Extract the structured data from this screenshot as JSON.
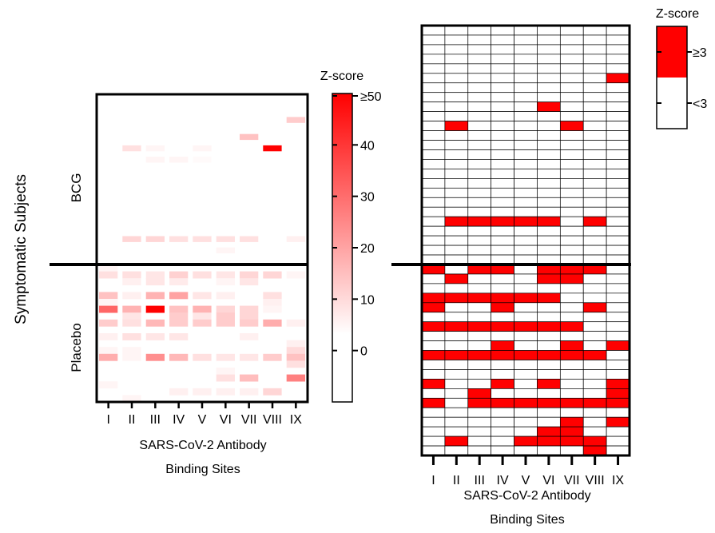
{
  "figure": {
    "y_axis_title": "Symptomatic Subjects",
    "group_top": "BCG",
    "group_bottom": "Placebo"
  },
  "chart_data": [
    {
      "type": "heatmap",
      "panel": "left",
      "xlabel": "SARS-CoV-2 Antibody",
      "xlabel2": "Binding Sites",
      "ylabel": "Symptomatic Subjects",
      "groups": [
        "BCG",
        "Placebo"
      ],
      "categories": [
        "I",
        "II",
        "III",
        "IV",
        "V",
        "VI",
        "VII",
        "VIII",
        "IX"
      ],
      "colorbar": {
        "title": "Z-score",
        "ticks": [
          "≥50",
          "40",
          "30",
          "20",
          "10",
          "0"
        ],
        "tick_values": [
          50,
          40,
          30,
          20,
          10,
          0
        ],
        "min": -10,
        "max": 50,
        "low_color": "#ffffff",
        "high_color": "#ff0000"
      },
      "rows_bcg": [
        [
          0,
          0,
          0,
          0,
          0,
          0,
          0,
          0,
          0
        ],
        [
          0,
          0,
          0,
          0,
          0,
          0,
          0,
          0,
          0
        ],
        [
          0,
          0,
          0,
          0,
          0,
          0,
          0,
          0,
          0
        ],
        [
          0,
          0,
          0,
          0,
          0,
          0,
          0,
          0,
          0
        ],
        [
          0,
          0,
          0,
          0,
          0,
          0,
          0,
          0,
          10
        ],
        [
          0,
          0,
          0,
          0,
          0,
          0,
          0,
          0,
          0
        ],
        [
          0,
          0,
          0,
          0,
          0,
          0,
          0,
          0,
          0
        ],
        [
          0,
          0,
          0,
          0,
          0,
          0,
          12,
          0,
          0
        ],
        [
          0,
          0,
          0,
          0,
          0,
          0,
          0,
          0,
          0
        ],
        [
          0,
          6,
          2,
          0,
          2,
          0,
          0,
          50,
          0
        ],
        [
          0,
          0,
          0,
          0,
          0,
          0,
          0,
          0,
          0
        ],
        [
          0,
          0,
          2,
          2,
          1,
          0,
          0,
          0,
          0
        ],
        [
          0,
          0,
          0,
          0,
          0,
          0,
          0,
          0,
          0
        ],
        [
          0,
          0,
          0,
          0,
          0,
          0,
          0,
          0,
          0
        ],
        [
          0,
          0,
          0,
          0,
          0,
          0,
          0,
          0,
          0
        ],
        [
          0,
          0,
          0,
          0,
          0,
          0,
          0,
          0,
          0
        ],
        [
          0,
          0,
          0,
          0,
          0,
          0,
          0,
          0,
          0
        ],
        [
          0,
          0,
          0,
          0,
          0,
          0,
          0,
          0,
          0
        ],
        [
          0,
          0,
          0,
          0,
          0,
          0,
          0,
          0,
          0
        ],
        [
          0,
          0,
          0,
          0,
          0,
          0,
          0,
          0,
          0
        ],
        [
          0,
          0,
          0,
          0,
          0,
          0,
          0,
          0,
          0
        ],
        [
          0,
          0,
          0,
          0,
          0,
          0,
          0,
          0,
          0
        ],
        [
          0,
          0,
          0,
          0,
          0,
          0,
          0,
          0,
          0
        ],
        [
          0,
          0,
          0,
          0,
          0,
          0,
          0,
          0,
          0
        ],
        [
          0,
          0,
          0,
          0,
          0,
          0,
          0,
          0,
          0
        ],
        [
          0,
          8,
          8,
          6,
          6,
          6,
          6,
          0,
          3
        ],
        [
          0,
          0,
          0,
          0,
          0,
          0,
          0,
          0,
          0
        ],
        [
          0,
          0,
          0,
          0,
          0,
          2,
          0,
          0,
          0
        ],
        [
          0,
          0,
          0,
          0,
          0,
          0,
          0,
          0,
          0
        ],
        [
          0,
          0,
          0,
          0,
          0,
          0,
          0,
          0,
          0
        ]
      ],
      "rows_placebo": [
        [
          2,
          0,
          0,
          0,
          0,
          0,
          0,
          0,
          0
        ],
        [
          6,
          6,
          5,
          9,
          6,
          5,
          8,
          8,
          2
        ],
        [
          0,
          3,
          5,
          4,
          0,
          2,
          5,
          0,
          0
        ],
        [
          0,
          0,
          0,
          0,
          0,
          0,
          0,
          0,
          0
        ],
        [
          12,
          3,
          15,
          18,
          5,
          3,
          0,
          6,
          0
        ],
        [
          2,
          0,
          0,
          0,
          0,
          0,
          0,
          3,
          0
        ],
        [
          30,
          15,
          50,
          12,
          15,
          8,
          8,
          2,
          0
        ],
        [
          0,
          5,
          0,
          10,
          5,
          10,
          8,
          0,
          0
        ],
        [
          10,
          6,
          14,
          10,
          10,
          10,
          10,
          16,
          3
        ],
        [
          0,
          0,
          0,
          0,
          0,
          0,
          0,
          0,
          0
        ],
        [
          3,
          6,
          5,
          5,
          0,
          0,
          3,
          0,
          0
        ],
        [
          0,
          0,
          0,
          0,
          0,
          0,
          0,
          0,
          3
        ],
        [
          2,
          2,
          0,
          0,
          0,
          0,
          0,
          0,
          7
        ],
        [
          16,
          2,
          22,
          14,
          6,
          5,
          5,
          10,
          12
        ],
        [
          0,
          0,
          0,
          0,
          0,
          0,
          0,
          0,
          6
        ],
        [
          0,
          0,
          0,
          0,
          0,
          2,
          0,
          0,
          0
        ],
        [
          0,
          0,
          0,
          0,
          0,
          6,
          13,
          0,
          25
        ],
        [
          2,
          0,
          0,
          0,
          0,
          0,
          0,
          0,
          0
        ],
        [
          0,
          0,
          0,
          3,
          3,
          3,
          3,
          8,
          0
        ],
        [
          0,
          2,
          0,
          0,
          0,
          0,
          0,
          0,
          0
        ]
      ]
    },
    {
      "type": "heatmap",
      "panel": "right",
      "xlabel": "SARS-CoV-2 Antibody",
      "xlabel2": "Binding Sites",
      "categories": [
        "I",
        "II",
        "III",
        "IV",
        "V",
        "VI",
        "VII",
        "VIII",
        "IX"
      ],
      "legend": {
        "title": "Z-score",
        "labels": [
          "≥3",
          "<3"
        ],
        "colors": [
          "#ff0000",
          "#ffffff"
        ]
      },
      "rows_bcg": [
        [
          0,
          0,
          0,
          0,
          0,
          0,
          0,
          0,
          0
        ],
        [
          0,
          0,
          0,
          0,
          0,
          0,
          0,
          0,
          0
        ],
        [
          0,
          0,
          0,
          0,
          0,
          0,
          0,
          0,
          0
        ],
        [
          0,
          0,
          0,
          0,
          0,
          0,
          0,
          0,
          0
        ],
        [
          0,
          0,
          0,
          0,
          0,
          0,
          0,
          0,
          0
        ],
        [
          0,
          0,
          0,
          0,
          0,
          0,
          0,
          0,
          1
        ],
        [
          0,
          0,
          0,
          0,
          0,
          0,
          0,
          0,
          0
        ],
        [
          0,
          0,
          0,
          0,
          0,
          0,
          0,
          0,
          0
        ],
        [
          0,
          0,
          0,
          0,
          0,
          1,
          0,
          0,
          0
        ],
        [
          0,
          0,
          0,
          0,
          0,
          0,
          0,
          0,
          0
        ],
        [
          0,
          1,
          0,
          0,
          0,
          0,
          1,
          0,
          0
        ],
        [
          0,
          0,
          0,
          0,
          0,
          0,
          0,
          0,
          0
        ],
        [
          0,
          0,
          0,
          0,
          0,
          0,
          0,
          0,
          0
        ],
        [
          0,
          0,
          0,
          0,
          0,
          0,
          0,
          0,
          0
        ],
        [
          0,
          0,
          0,
          0,
          0,
          0,
          0,
          0,
          0
        ],
        [
          0,
          0,
          0,
          0,
          0,
          0,
          0,
          0,
          0
        ],
        [
          0,
          0,
          0,
          0,
          0,
          0,
          0,
          0,
          0
        ],
        [
          0,
          0,
          0,
          0,
          0,
          0,
          0,
          0,
          0
        ],
        [
          0,
          0,
          0,
          0,
          0,
          0,
          0,
          0,
          0
        ],
        [
          0,
          0,
          0,
          0,
          0,
          0,
          0,
          0,
          0
        ],
        [
          0,
          1,
          1,
          1,
          1,
          1,
          0,
          1,
          0
        ],
        [
          0,
          0,
          0,
          0,
          0,
          0,
          0,
          0,
          0
        ],
        [
          0,
          0,
          0,
          0,
          0,
          0,
          0,
          0,
          0
        ],
        [
          0,
          0,
          0,
          0,
          0,
          0,
          0,
          0,
          0
        ],
        [
          0,
          0,
          0,
          0,
          0,
          0,
          0,
          0,
          0
        ]
      ],
      "rows_placebo": [
        [
          1,
          0,
          1,
          1,
          0,
          1,
          1,
          1,
          0
        ],
        [
          0,
          1,
          0,
          0,
          0,
          1,
          1,
          0,
          0
        ],
        [
          0,
          0,
          0,
          0,
          0,
          0,
          0,
          0,
          0
        ],
        [
          1,
          1,
          1,
          1,
          1,
          1,
          0,
          0,
          0
        ],
        [
          1,
          0,
          0,
          1,
          0,
          0,
          0,
          1,
          0
        ],
        [
          0,
          0,
          0,
          0,
          0,
          0,
          0,
          0,
          0
        ],
        [
          1,
          1,
          1,
          1,
          1,
          1,
          1,
          0,
          0
        ],
        [
          0,
          0,
          0,
          0,
          0,
          0,
          0,
          0,
          0
        ],
        [
          0,
          0,
          0,
          1,
          0,
          0,
          1,
          0,
          1
        ],
        [
          1,
          1,
          1,
          1,
          1,
          1,
          1,
          1,
          0
        ],
        [
          0,
          0,
          0,
          0,
          0,
          0,
          0,
          0,
          0
        ],
        [
          0,
          0,
          0,
          0,
          0,
          0,
          0,
          0,
          0
        ],
        [
          1,
          0,
          0,
          1,
          0,
          1,
          0,
          0,
          1
        ],
        [
          0,
          0,
          1,
          0,
          0,
          0,
          0,
          0,
          1
        ],
        [
          1,
          0,
          1,
          1,
          1,
          1,
          1,
          1,
          1
        ],
        [
          0,
          0,
          0,
          0,
          0,
          0,
          0,
          0,
          0
        ],
        [
          0,
          0,
          0,
          0,
          0,
          0,
          1,
          0,
          1
        ],
        [
          0,
          0,
          0,
          0,
          0,
          1,
          1,
          0,
          0
        ],
        [
          0,
          1,
          0,
          0,
          1,
          1,
          1,
          1,
          0
        ],
        [
          0,
          0,
          0,
          0,
          0,
          0,
          0,
          1,
          0
        ]
      ]
    }
  ]
}
